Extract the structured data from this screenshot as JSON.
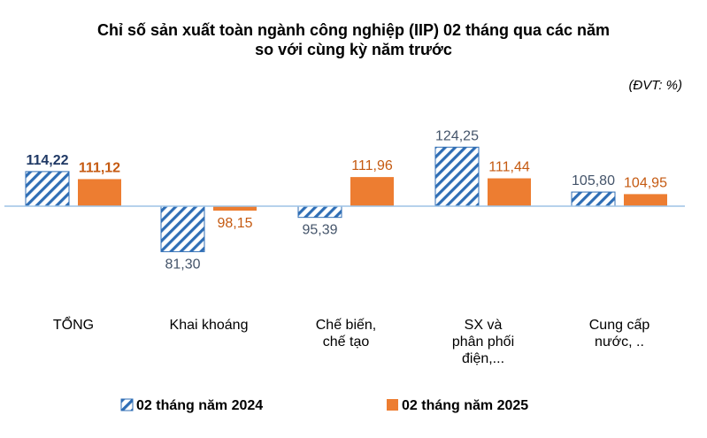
{
  "chart_data": {
    "type": "bar",
    "title_line1": "Chỉ số sản xuất toàn ngành công nghiệp (IIP) 02 tháng qua các năm",
    "title_line2": "so với cùng kỳ năm trước",
    "unit": "(ĐVT: %)",
    "baseline": 100,
    "categories": [
      [
        "TỔNG"
      ],
      [
        "Khai  khoáng"
      ],
      [
        "Chế biến,",
        "chế tạo"
      ],
      [
        "SX và",
        "phân phối",
        "điện,..."
      ],
      [
        "Cung cấp",
        "nước, .."
      ]
    ],
    "series": [
      {
        "name": "02 tháng năm 2024",
        "values": [
          114.22,
          81.3,
          95.39,
          124.25,
          105.8
        ],
        "labels": [
          "114,22",
          "81,30",
          "95,39",
          "124,25",
          "105,80"
        ],
        "color": "#2f6eb5",
        "pattern": "diagonal-stripes",
        "label_color": "#44546a",
        "total_label_color": "#1f3864"
      },
      {
        "name": "02 tháng năm 2025",
        "values": [
          111.12,
          98.15,
          111.96,
          111.44,
          104.95
        ],
        "labels": [
          "111,12",
          "98,15",
          "111,96",
          "111,44",
          "104,95"
        ],
        "color": "#ed7d31",
        "pattern": "solid",
        "label_color": "#c55a11",
        "total_label_color": "#c55a11"
      }
    ],
    "axis_color": "#9dc3e6"
  }
}
